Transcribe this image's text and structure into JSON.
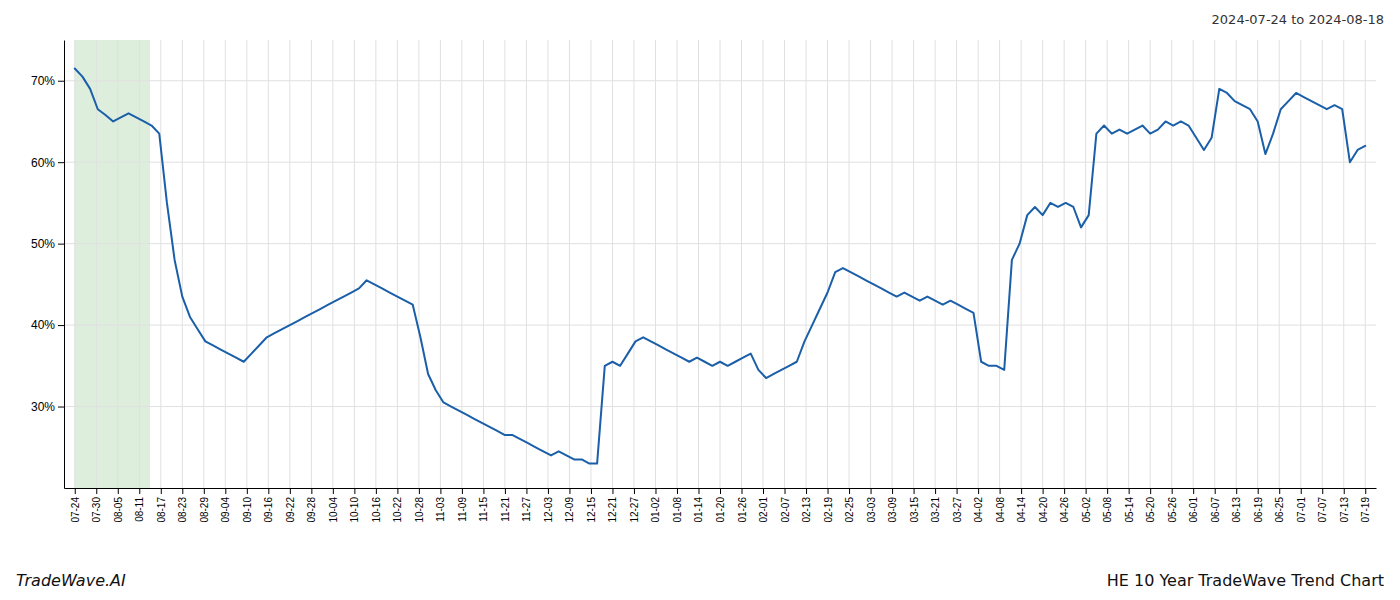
{
  "chart_data": {
    "type": "line",
    "title": "HE 10 Year TradeWave Trend Chart",
    "subtitle": "2024-07-24 to 2024-08-18",
    "annotations": [
      "TradeWave.AI"
    ],
    "color": "#1a5fa8",
    "grid": true,
    "highlight": {
      "start": 0,
      "end": 3.5,
      "color": "#ddeedd"
    },
    "xlim": [
      -0.5,
      60.5
    ],
    "xticks": [
      {
        "value": 0,
        "label": "07-24"
      },
      {
        "value": 1,
        "label": "07-30"
      },
      {
        "value": 2,
        "label": "08-05"
      },
      {
        "value": 3,
        "label": "08-11"
      },
      {
        "value": 4,
        "label": "08-17"
      },
      {
        "value": 5,
        "label": "08-23"
      },
      {
        "value": 6,
        "label": "08-29"
      },
      {
        "value": 7,
        "label": "09-04"
      },
      {
        "value": 8,
        "label": "09-10"
      },
      {
        "value": 9,
        "label": "09-16"
      },
      {
        "value": 10,
        "label": "09-22"
      },
      {
        "value": 11,
        "label": "09-28"
      },
      {
        "value": 12,
        "label": "10-04"
      },
      {
        "value": 13,
        "label": "10-10"
      },
      {
        "value": 14,
        "label": "10-16"
      },
      {
        "value": 15,
        "label": "10-22"
      },
      {
        "value": 16,
        "label": "10-28"
      },
      {
        "value": 17,
        "label": "11-03"
      },
      {
        "value": 18,
        "label": "11-09"
      },
      {
        "value": 19,
        "label": "11-15"
      },
      {
        "value": 20,
        "label": "11-21"
      },
      {
        "value": 21,
        "label": "11-27"
      },
      {
        "value": 22,
        "label": "12-03"
      },
      {
        "value": 23,
        "label": "12-09"
      },
      {
        "value": 24,
        "label": "12-15"
      },
      {
        "value": 25,
        "label": "12-21"
      },
      {
        "value": 26,
        "label": "12-27"
      },
      {
        "value": 27,
        "label": "01-02"
      },
      {
        "value": 28,
        "label": "01-08"
      },
      {
        "value": 29,
        "label": "01-14"
      },
      {
        "value": 30,
        "label": "01-20"
      },
      {
        "value": 31,
        "label": "01-26"
      },
      {
        "value": 32,
        "label": "02-01"
      },
      {
        "value": 33,
        "label": "02-07"
      },
      {
        "value": 34,
        "label": "02-13"
      },
      {
        "value": 35,
        "label": "02-19"
      },
      {
        "value": 36,
        "label": "02-25"
      },
      {
        "value": 37,
        "label": "03-03"
      },
      {
        "value": 38,
        "label": "03-09"
      },
      {
        "value": 39,
        "label": "03-15"
      },
      {
        "value": 40,
        "label": "03-21"
      },
      {
        "value": 41,
        "label": "03-27"
      },
      {
        "value": 42,
        "label": "04-02"
      },
      {
        "value": 43,
        "label": "04-08"
      },
      {
        "value": 44,
        "label": "04-14"
      },
      {
        "value": 45,
        "label": "04-20"
      },
      {
        "value": 46,
        "label": "04-26"
      },
      {
        "value": 47,
        "label": "05-02"
      },
      {
        "value": 48,
        "label": "05-08"
      },
      {
        "value": 49,
        "label": "05-14"
      },
      {
        "value": 50,
        "label": "05-20"
      },
      {
        "value": 51,
        "label": "05-26"
      },
      {
        "value": 52,
        "label": "06-01"
      },
      {
        "value": 53,
        "label": "06-07"
      },
      {
        "value": 54,
        "label": "06-13"
      },
      {
        "value": 55,
        "label": "06-19"
      },
      {
        "value": 56,
        "label": "06-25"
      },
      {
        "value": 57,
        "label": "07-01"
      },
      {
        "value": 58,
        "label": "07-07"
      },
      {
        "value": 59,
        "label": "07-13"
      },
      {
        "value": 60,
        "label": "07-19"
      }
    ],
    "ylim": [
      20,
      75
    ],
    "yticks": [
      {
        "value": 30,
        "label": "30%"
      },
      {
        "value": 40,
        "label": "40%"
      },
      {
        "value": 50,
        "label": "50%"
      },
      {
        "value": 60,
        "label": "60%"
      },
      {
        "value": 70,
        "label": "70%"
      }
    ],
    "x": [
      0,
      0.357143,
      0.714286,
      1.071429,
      1.428571,
      1.785714,
      2.142857,
      2.5,
      2.857143,
      3.214286,
      3.571429,
      3.928571,
      4.285714,
      4.642857,
      5,
      5.357143,
      5.714286,
      6.071429,
      6.428571,
      6.785714,
      7.142857,
      7.5,
      7.857143,
      8.214286,
      8.571429,
      8.928571,
      9.285714,
      9.642857,
      10,
      10.357143,
      10.714286,
      11.071429,
      11.428571,
      11.785714,
      12.142857,
      12.5,
      12.857143,
      13.214286,
      13.571429,
      13.928571,
      14.285714,
      14.642857,
      15,
      15.357143,
      15.714286,
      16.071429,
      16.428571,
      16.785714,
      17.142857,
      17.5,
      17.857143,
      18.214286,
      18.571429,
      18.928571,
      19.285714,
      19.642857,
      20,
      20.357143,
      20.714286,
      21.071429,
      21.428571,
      21.785714,
      22.142857,
      22.5,
      22.857143,
      23.214286,
      23.571429,
      23.928571,
      24.285714,
      24.642857,
      25,
      25.357143,
      25.714286,
      26.071429,
      26.428571,
      26.785714,
      27.142857,
      27.5,
      27.857143,
      28.214286,
      28.571429,
      28.928571,
      29.285714,
      29.642857,
      30,
      30.357143,
      30.714286,
      31.071429,
      31.428571,
      31.785714,
      32.142857,
      32.5,
      32.857143,
      33.214286,
      33.571429,
      33.928571,
      34.285714,
      34.642857,
      35,
      35.357143,
      35.714286,
      36.071429,
      36.428571,
      36.785714,
      37.142857,
      37.5,
      37.857143,
      38.214286,
      38.571429,
      38.928571,
      39.285714,
      39.642857,
      40,
      40.357143,
      40.714286,
      41.071429,
      41.428571,
      41.785714,
      42.142857,
      42.5,
      42.857143,
      43.214286,
      43.571429,
      43.928571,
      44.285714,
      44.642857,
      45,
      45.357143,
      45.714286,
      46.071429,
      46.428571,
      46.785714,
      47.142857,
      47.5,
      47.857143,
      48.214286,
      48.571429,
      48.928571,
      49.285714,
      49.642857,
      50,
      50.357143,
      50.714286,
      51.071429,
      51.428571,
      51.785714,
      52.142857,
      52.5,
      52.857143,
      53.214286,
      53.571429,
      53.928571,
      54.285714,
      54.642857,
      55,
      55.357143,
      55.714286,
      56.071429,
      56.428571,
      56.785714,
      57.142857,
      57.5,
      57.857143,
      58.214286,
      58.571429,
      58.928571,
      59.285714,
      59.642857,
      60
    ],
    "values": [
      71.5,
      70.5,
      69.0,
      66.5,
      65.8,
      65.0,
      65.5,
      66.0,
      65.5,
      65.0,
      64.5,
      63.5,
      55.0,
      48.0,
      43.5,
      41.0,
      39.5,
      38.0,
      37.5,
      37.0,
      36.5,
      36.0,
      35.5,
      36.5,
      37.5,
      38.5,
      39.0,
      39.5,
      40.0,
      40.5,
      41.0,
      41.5,
      42.0,
      42.5,
      43.0,
      43.5,
      44.0,
      44.5,
      45.5,
      45.0,
      44.5,
      44.0,
      43.5,
      43.0,
      42.5,
      38.5,
      34.0,
      32.0,
      30.5,
      30.0,
      29.5,
      29.0,
      28.5,
      28.0,
      27.5,
      27.0,
      26.5,
      26.5,
      26.0,
      25.5,
      25.0,
      24.5,
      24.0,
      24.5,
      24.0,
      23.5,
      23.5,
      23.0,
      23.0,
      35.0,
      35.5,
      35.0,
      36.5,
      38.0,
      38.5,
      38.0,
      37.5,
      37.0,
      36.5,
      36.0,
      35.5,
      36.0,
      35.5,
      35.0,
      35.5,
      35.0,
      35.5,
      36.0,
      36.5,
      34.5,
      33.5,
      34.0,
      34.5,
      35.0,
      35.5,
      38.0,
      40.0,
      42.0,
      44.0,
      46.5,
      47.0,
      46.5,
      46.0,
      45.5,
      45.0,
      44.5,
      44.0,
      43.5,
      44.0,
      43.5,
      43.0,
      43.5,
      43.0,
      42.5,
      43.0,
      42.5,
      42.0,
      41.5,
      35.5,
      35.0,
      35.0,
      34.5,
      48.0,
      50.0,
      53.5,
      54.5,
      53.5,
      55.0,
      54.5,
      55.0,
      54.5,
      52.0,
      53.5,
      63.5,
      64.5,
      63.5,
      64.0,
      63.5,
      64.0,
      64.5,
      63.5,
      64.0,
      65.0,
      64.5,
      65.0,
      64.5,
      63.0,
      61.5,
      63.0,
      69.0,
      68.5,
      67.5,
      67.0,
      66.5,
      65.0,
      61.0,
      63.5,
      66.5,
      67.5,
      68.5,
      68.0,
      67.5,
      67.0,
      66.5,
      67.0,
      66.5,
      60.0,
      61.5,
      62.0
    ]
  }
}
